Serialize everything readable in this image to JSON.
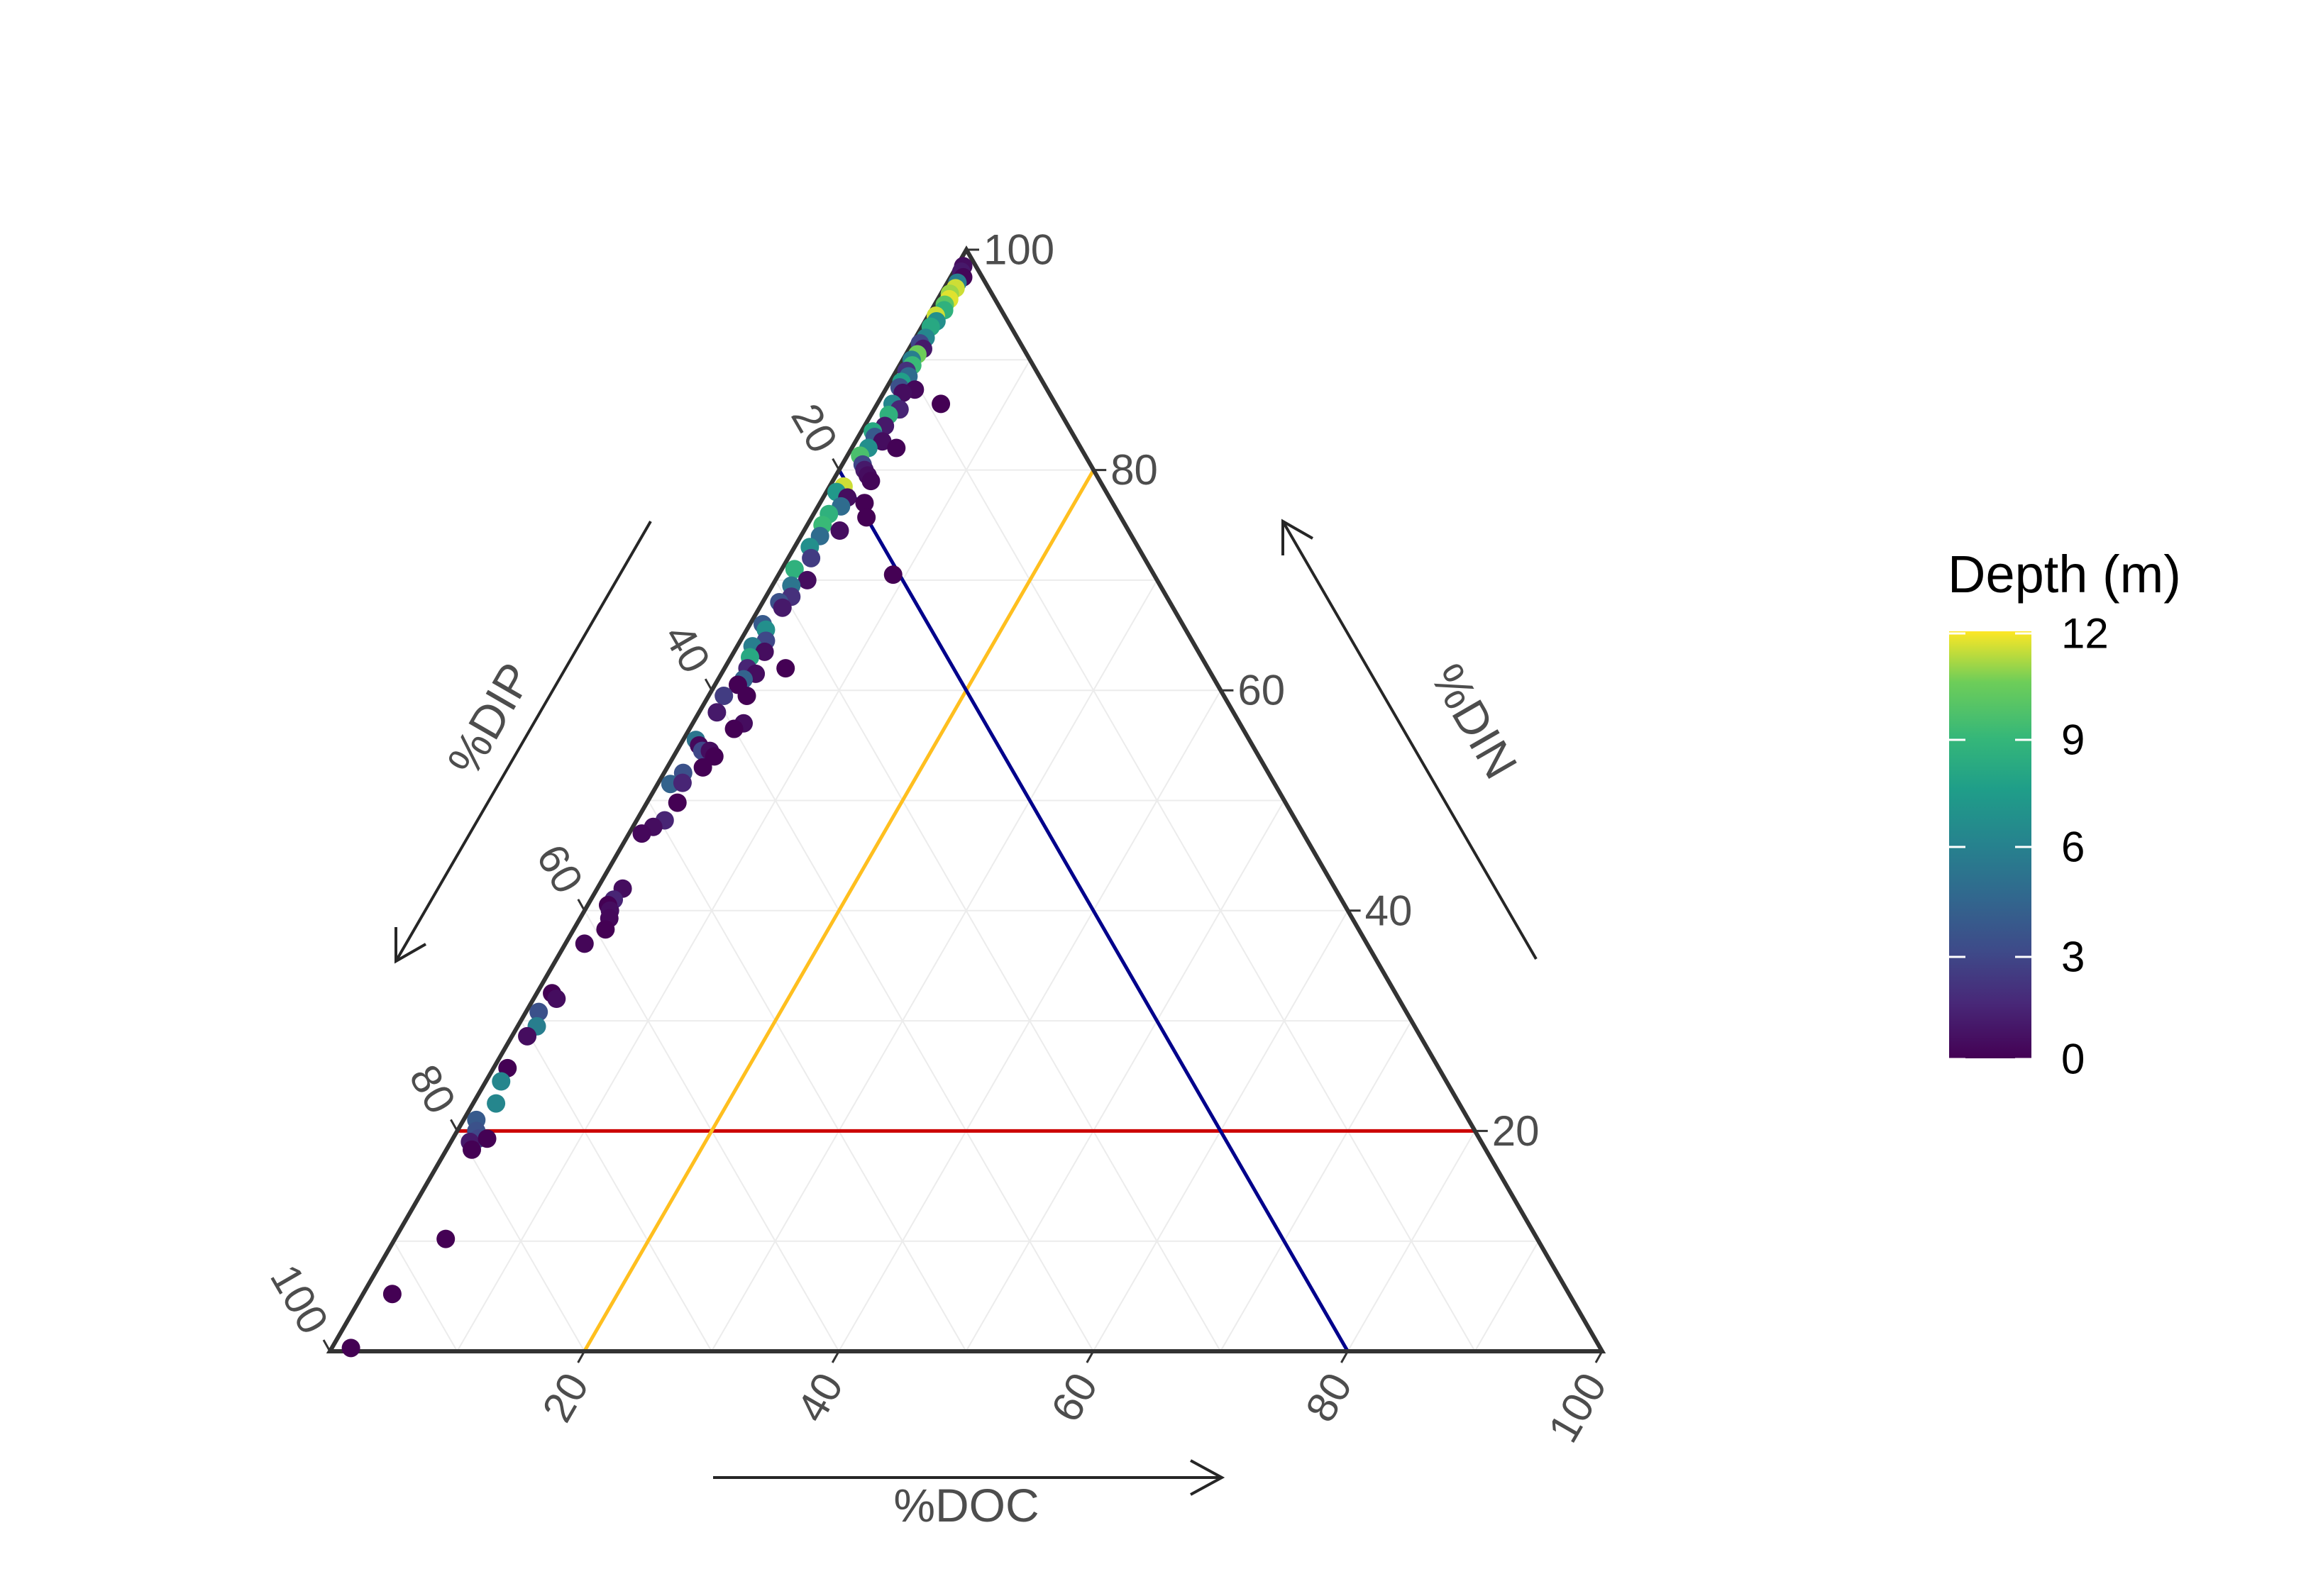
{
  "chart_data": {
    "type": "scatter",
    "subtype": "ternary",
    "axes": {
      "doc": {
        "title": "%DOC",
        "ticks": [
          "20",
          "40",
          "60",
          "80",
          "100"
        ]
      },
      "din": {
        "title": "%DIN",
        "ticks": [
          "20",
          "40",
          "60",
          "80",
          "100"
        ]
      },
      "dip": {
        "title": "%DIP",
        "ticks": [
          "20",
          "40",
          "60",
          "80",
          "100"
        ]
      }
    },
    "grid": true,
    "reference_lines": [
      {
        "color": "#CC0000",
        "constant": "din",
        "value": 20
      },
      {
        "color": "#FFBF1F",
        "constant": "doc",
        "value": 20
      },
      {
        "color": "#00008B",
        "constant": "dip",
        "value": 20
      }
    ],
    "legend": {
      "title": "Depth (m)",
      "position": "right",
      "colormap": "viridis",
      "range": [
        0,
        12.5
      ],
      "ticks": [
        "0",
        "3",
        "6",
        "9",
        "12"
      ],
      "colors": [
        "#440154",
        "#3B528B",
        "#21908C",
        "#5DC863",
        "#FDE725"
      ]
    },
    "points_columns": [
      "doc",
      "din",
      "dip",
      "depth"
    ],
    "points": [
      [
        0.5,
        98.5,
        1.0,
        0.5
      ],
      [
        0.6,
        98.0,
        1.4,
        1.0
      ],
      [
        1.0,
        97.5,
        1.5,
        0.2
      ],
      [
        0.8,
        97.0,
        2.2,
        6.0
      ],
      [
        0.9,
        96.5,
        2.6,
        12.0
      ],
      [
        0.7,
        96.0,
        3.3,
        11.5
      ],
      [
        0.9,
        95.5,
        3.6,
        12.2
      ],
      [
        0.8,
        95.0,
        4.2,
        10.5
      ],
      [
        1.0,
        94.5,
        4.5,
        9.0
      ],
      [
        0.6,
        94.0,
        5.4,
        12.0
      ],
      [
        0.9,
        93.5,
        5.6,
        7.0
      ],
      [
        0.7,
        93.0,
        6.3,
        8.5
      ],
      [
        0.8,
        92.0,
        7.2,
        6.5
      ],
      [
        0.6,
        91.5,
        7.9,
        3.0
      ],
      [
        1.1,
        91.0,
        7.9,
        1.0
      ],
      [
        0.9,
        90.5,
        8.6,
        11.0
      ],
      [
        0.7,
        90.0,
        9.3,
        6.0
      ],
      [
        1.0,
        89.5,
        9.5,
        9.5
      ],
      [
        0.8,
        89.0,
        10.2,
        2.0
      ],
      [
        1.2,
        88.5,
        10.3,
        5.0
      ],
      [
        0.9,
        88.0,
        11.1,
        8.0
      ],
      [
        1.0,
        87.5,
        11.5,
        3.5
      ],
      [
        2.3,
        87.3,
        10.4,
        0.3
      ],
      [
        1.5,
        87.0,
        11.5,
        0.5
      ],
      [
        5.0,
        86.0,
        9.0,
        0.0
      ],
      [
        1.2,
        86.0,
        12.8,
        6.5
      ],
      [
        2.0,
        85.5,
        12.5,
        1.5
      ],
      [
        1.4,
        85.0,
        13.6,
        9.0
      ],
      [
        1.6,
        84.0,
        14.4,
        1.0
      ],
      [
        0.9,
        83.5,
        15.6,
        8.5
      ],
      [
        1.3,
        83.0,
        15.7,
        4.0
      ],
      [
        2.1,
        82.6,
        15.3,
        0.5
      ],
      [
        3.5,
        82.0,
        14.5,
        0.1
      ],
      [
        1.3,
        82.0,
        16.7,
        7.0
      ],
      [
        1.0,
        81.3,
        17.7,
        10.0
      ],
      [
        1.6,
        80.5,
        17.9,
        3.0
      ],
      [
        2.0,
        80.0,
        18.0,
        1.0
      ],
      [
        2.5,
        79.5,
        18.0,
        0.5
      ],
      [
        3.0,
        79.0,
        18.0,
        0.2
      ],
      [
        1.1,
        78.5,
        20.4,
        12.0
      ],
      [
        0.8,
        78.0,
        21.2,
        7.5
      ],
      [
        1.9,
        77.5,
        20.6,
        0.5
      ],
      [
        3.5,
        77.0,
        19.5,
        0.0
      ],
      [
        1.8,
        76.7,
        21.5,
        5.0
      ],
      [
        4.3,
        75.7,
        20.0,
        0.0
      ],
      [
        1.2,
        76.0,
        22.8,
        9.0
      ],
      [
        1.2,
        75.0,
        23.8,
        9.5
      ],
      [
        2.8,
        74.5,
        22.7,
        0.5
      ],
      [
        1.5,
        74.0,
        24.5,
        5.0
      ],
      [
        1.2,
        73.0,
        25.8,
        7.0
      ],
      [
        1.8,
        72.0,
        26.2,
        2.5
      ],
      [
        1.0,
        71.0,
        28.0,
        9.0
      ],
      [
        9.0,
        70.5,
        20.5,
        0.0
      ],
      [
        2.5,
        70.0,
        27.5,
        0.5
      ],
      [
        1.5,
        69.5,
        29.0,
        5.5
      ],
      [
        2.0,
        68.5,
        29.5,
        2.0
      ],
      [
        1.3,
        68.0,
        30.7,
        3.5
      ],
      [
        1.8,
        67.5,
        30.7,
        1.0
      ],
      [
        1.0,
        66.0,
        33.0,
        4.0
      ],
      [
        1.5,
        65.5,
        33.0,
        7.0
      ],
      [
        2.0,
        64.5,
        33.5,
        3.0
      ],
      [
        1.2,
        64.0,
        34.8,
        6.0
      ],
      [
        2.4,
        63.5,
        34.1,
        0.5
      ],
      [
        1.5,
        63.0,
        35.5,
        8.5
      ],
      [
        4.8,
        62.0,
        33.2,
        0.0
      ],
      [
        1.8,
        62.0,
        36.2,
        1.5
      ],
      [
        2.7,
        61.5,
        35.8,
        0.5
      ],
      [
        2.0,
        61.0,
        37.0,
        4.5
      ],
      [
        1.8,
        60.5,
        37.7,
        0.0
      ],
      [
        3.0,
        59.5,
        37.5,
        0.0
      ],
      [
        1.2,
        59.5,
        39.3,
        2.5
      ],
      [
        1.4,
        58.0,
        40.6,
        1.0
      ],
      [
        4.0,
        57.0,
        39.0,
        0.5
      ],
      [
        3.5,
        56.5,
        40.0,
        0.0
      ],
      [
        1.0,
        55.5,
        43.5,
        5.5
      ],
      [
        1.5,
        55.0,
        43.5,
        0.3
      ],
      [
        2.0,
        54.5,
        43.5,
        3.0
      ],
      [
        2.6,
        54.5,
        42.9,
        0.5
      ],
      [
        3.2,
        54.0,
        42.8,
        0.0
      ],
      [
        2.8,
        53.0,
        44.2,
        0.0
      ],
      [
        1.5,
        52.5,
        46.0,
        3.5
      ],
      [
        1.0,
        51.5,
        47.5,
        4.5
      ],
      [
        1.9,
        51.6,
        46.5,
        1.5
      ],
      [
        2.4,
        49.8,
        47.8,
        0.0
      ],
      [
        2.2,
        48.2,
        49.6,
        1.5
      ],
      [
        1.6,
        47.6,
        50.8,
        0.5
      ],
      [
        1.0,
        47.0,
        52.0,
        0.3
      ],
      [
        2.0,
        42.0,
        56.0,
        0.5
      ],
      [
        1.8,
        41.0,
        57.2,
        1.5
      ],
      [
        1.6,
        40.5,
        57.9,
        0.0
      ],
      [
        2.0,
        40.0,
        58.0,
        0.5
      ],
      [
        2.3,
        39.3,
        58.4,
        0.3
      ],
      [
        2.5,
        38.3,
        59.2,
        0.0
      ],
      [
        1.5,
        37.0,
        61.5,
        0.2
      ],
      [
        1.2,
        32.5,
        66.3,
        0.0
      ],
      [
        1.8,
        32.0,
        66.2,
        0.5
      ],
      [
        1.0,
        30.8,
        68.2,
        3.5
      ],
      [
        1.5,
        29.5,
        69.0,
        6.0
      ],
      [
        1.2,
        28.6,
        70.2,
        0.5
      ],
      [
        1.1,
        25.7,
        73.2,
        0.0
      ],
      [
        1.2,
        24.5,
        74.3,
        6.5
      ],
      [
        1.8,
        22.5,
        75.7,
        6.5
      ],
      [
        1.0,
        21.0,
        78.0,
        4.0
      ],
      [
        1.5,
        20.0,
        78.5,
        3.5
      ],
      [
        2.0,
        19.3,
        78.7,
        3.0
      ],
      [
        1.5,
        19.0,
        79.5,
        1.0
      ],
      [
        2.0,
        18.3,
        79.7,
        0.0
      ],
      [
        2.7,
        19.3,
        78.0,
        0.0
      ],
      [
        4.0,
        10.2,
        85.8,
        0.0
      ],
      [
        2.3,
        5.2,
        92.5,
        0.0
      ],
      [
        1.5,
        0.3,
        98.2,
        0.0
      ]
    ]
  }
}
